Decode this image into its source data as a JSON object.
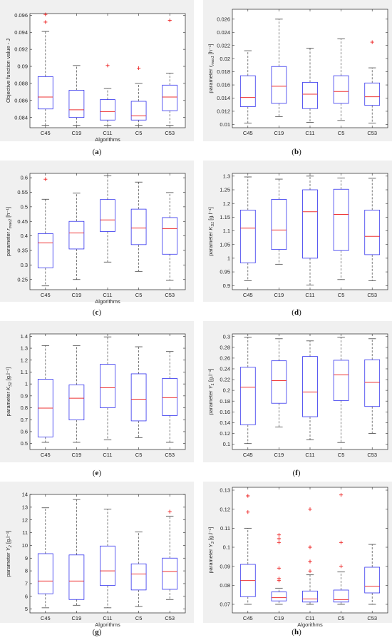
{
  "figure_colors": {
    "panel_background": "#f0f0f0",
    "box": "#3333ee",
    "median": "#ee3333",
    "outlier": "#ee2222",
    "whisker": "#444444"
  },
  "chart_data": [
    {
      "id": "a",
      "caption": "(a)",
      "type": "boxplot",
      "xlabel": "Algorithms",
      "ylabel": "Objective function value - J",
      "ylim": [
        0.0828,
        0.0962
      ],
      "yticks": [
        0.084,
        0.086,
        0.088,
        0.09,
        0.092,
        0.094,
        0.096
      ],
      "ytick_labels": [
        "0.084",
        "0.086",
        "0.088",
        "0.09",
        "0.092",
        "0.094",
        "0.096"
      ],
      "categories": [
        "C45",
        "C19",
        "C11",
        "C5",
        "C53"
      ],
      "boxes": [
        {
          "min": 0.0831,
          "q1": 0.085,
          "median": 0.0864,
          "q3": 0.0888,
          "max": 0.0941,
          "outliers": [
            0.0952,
            0.0961
          ]
        },
        {
          "min": 0.0831,
          "q1": 0.084,
          "median": 0.0849,
          "q3": 0.0872,
          "max": 0.0901,
          "outliers": []
        },
        {
          "min": 0.0831,
          "q1": 0.0837,
          "median": 0.0847,
          "q3": 0.0861,
          "max": 0.0874,
          "outliers": [
            0.0901
          ]
        },
        {
          "min": 0.0831,
          "q1": 0.0837,
          "median": 0.0842,
          "q3": 0.0859,
          "max": 0.088,
          "outliers": [
            0.0898
          ]
        },
        {
          "min": 0.0831,
          "q1": 0.0848,
          "median": 0.0864,
          "q3": 0.0878,
          "max": 0.0892,
          "outliers": [
            0.0954
          ]
        }
      ]
    },
    {
      "id": "b",
      "caption": "(b)",
      "type": "boxplot",
      "xlabel": "",
      "ylabel": "parameter r_max1 [h⁻¹]",
      "ylim": [
        0.0095,
        0.0275
      ],
      "yticks": [
        0.01,
        0.012,
        0.014,
        0.016,
        0.018,
        0.02,
        0.022,
        0.024,
        0.026
      ],
      "ytick_labels": [
        "0.01",
        "0.012",
        "0.014",
        "0.016",
        "0.018",
        "0.02",
        "0.022",
        "0.024",
        "0.026"
      ],
      "categories": [
        "C45",
        "C19",
        "C11",
        "C5",
        "C53"
      ],
      "boxes": [
        {
          "min": 0.0102,
          "q1": 0.0127,
          "median": 0.0141,
          "q3": 0.0174,
          "max": 0.0212,
          "outliers": []
        },
        {
          "min": 0.0112,
          "q1": 0.0132,
          "median": 0.0158,
          "q3": 0.0188,
          "max": 0.026,
          "outliers": []
        },
        {
          "min": 0.0103,
          "q1": 0.0124,
          "median": 0.0146,
          "q3": 0.0164,
          "max": 0.0216,
          "outliers": []
        },
        {
          "min": 0.0106,
          "q1": 0.0132,
          "median": 0.015,
          "q3": 0.0174,
          "max": 0.023,
          "outliers": []
        },
        {
          "min": 0.0102,
          "q1": 0.0129,
          "median": 0.0142,
          "q3": 0.0163,
          "max": 0.0186,
          "outliers": [
            0.0225
          ]
        }
      ]
    },
    {
      "id": "c",
      "caption": "(c)",
      "type": "boxplot",
      "xlabel": "Algorithms",
      "ylabel": "parameter r_max2 [h⁻¹]",
      "ylim": [
        0.215,
        0.615
      ],
      "yticks": [
        0.25,
        0.3,
        0.35,
        0.4,
        0.45,
        0.5,
        0.55,
        0.6
      ],
      "ytick_labels": [
        "0.25",
        "0.3",
        "0.35",
        "0.4",
        "0.45",
        "0.5",
        "0.55",
        "0.6"
      ],
      "categories": [
        "C45",
        "C19",
        "C11",
        "C5",
        "C53"
      ],
      "boxes": [
        {
          "min": 0.228,
          "q1": 0.29,
          "median": 0.376,
          "q3": 0.408,
          "max": 0.526,
          "outliers": [
            0.595
          ]
        },
        {
          "min": 0.25,
          "q1": 0.355,
          "median": 0.41,
          "q3": 0.45,
          "max": 0.547,
          "outliers": []
        },
        {
          "min": 0.31,
          "q1": 0.415,
          "median": 0.455,
          "q3": 0.525,
          "max": 0.607,
          "outliers": []
        },
        {
          "min": 0.278,
          "q1": 0.37,
          "median": 0.427,
          "q3": 0.492,
          "max": 0.585,
          "outliers": []
        },
        {
          "min": 0.247,
          "q1": 0.337,
          "median": 0.425,
          "q3": 0.463,
          "max": 0.549,
          "outliers": []
        }
      ]
    },
    {
      "id": "d",
      "caption": "(d)",
      "type": "boxplot",
      "xlabel": "",
      "ylabel": "parameter K_S1 [g.l⁻¹]",
      "ylim": [
        0.885,
        1.31
      ],
      "yticks": [
        0.9,
        0.95,
        1.0,
        1.05,
        1.1,
        1.15,
        1.2,
        1.25,
        1.3
      ],
      "ytick_labels": [
        "0.9",
        "0.95",
        "1",
        "1.05",
        "1.1",
        "1.15",
        "1.2",
        "1.25",
        "1.3"
      ],
      "categories": [
        "C45",
        "C19",
        "C11",
        "C5",
        "C53"
      ],
      "boxes": [
        {
          "min": 0.918,
          "q1": 0.983,
          "median": 1.11,
          "q3": 1.176,
          "max": 1.297,
          "outliers": []
        },
        {
          "min": 0.978,
          "q1": 1.032,
          "median": 1.103,
          "q3": 1.215,
          "max": 1.289,
          "outliers": []
        },
        {
          "min": 0.902,
          "q1": 1.0,
          "median": 1.17,
          "q3": 1.25,
          "max": 1.3,
          "outliers": []
        },
        {
          "min": 0.922,
          "q1": 1.028,
          "median": 1.16,
          "q3": 1.252,
          "max": 1.293,
          "outliers": []
        },
        {
          "min": 0.918,
          "q1": 1.013,
          "median": 1.08,
          "q3": 1.176,
          "max": 1.292,
          "outliers": []
        }
      ]
    },
    {
      "id": "e",
      "caption": "(e)",
      "type": "boxplot",
      "xlabel": "",
      "ylabel": "parameter K_S2 [g.l⁻¹]",
      "ylim": [
        0.45,
        1.42
      ],
      "yticks": [
        0.5,
        0.6,
        0.7,
        0.8,
        0.9,
        1.0,
        1.1,
        1.2,
        1.3,
        1.4
      ],
      "ytick_labels": [
        "0.5",
        "0.6",
        "0.7",
        "0.8",
        "0.9",
        "1",
        "1.1",
        "1.2",
        "1.3",
        "1.4"
      ],
      "categories": [
        "C45",
        "C19",
        "C11",
        "C5",
        "C53"
      ],
      "boxes": [
        {
          "min": 0.51,
          "q1": 0.555,
          "median": 0.797,
          "q3": 1.04,
          "max": 1.322,
          "outliers": []
        },
        {
          "min": 0.51,
          "q1": 0.698,
          "median": 0.88,
          "q3": 0.993,
          "max": 1.322,
          "outliers": []
        },
        {
          "min": 0.53,
          "q1": 0.8,
          "median": 0.968,
          "q3": 1.165,
          "max": 1.395,
          "outliers": []
        },
        {
          "min": 0.55,
          "q1": 0.69,
          "median": 0.872,
          "q3": 1.085,
          "max": 1.312,
          "outliers": []
        },
        {
          "min": 0.51,
          "q1": 0.735,
          "median": 0.885,
          "q3": 1.046,
          "max": 1.272,
          "outliers": []
        }
      ]
    },
    {
      "id": "f",
      "caption": "(f)",
      "type": "boxplot",
      "xlabel": "",
      "ylabel": "parameter Y_1 [g.l⁻¹]",
      "ylim": [
        0.09,
        0.305
      ],
      "yticks": [
        0.1,
        0.12,
        0.14,
        0.16,
        0.18,
        0.2,
        0.22,
        0.24,
        0.26,
        0.28,
        0.3
      ],
      "ytick_labels": [
        "0.1",
        "0.12",
        "0.14",
        "0.16",
        "0.18",
        "0.2",
        "0.22",
        "0.24",
        "0.26",
        "0.28",
        "0.3"
      ],
      "categories": [
        "C45",
        "C19",
        "C11",
        "C5",
        "C53"
      ],
      "boxes": [
        {
          "min": 0.101,
          "q1": 0.136,
          "median": 0.206,
          "q3": 0.243,
          "max": 0.299,
          "outliers": []
        },
        {
          "min": 0.132,
          "q1": 0.176,
          "median": 0.218,
          "q3": 0.255,
          "max": 0.296,
          "outliers": []
        },
        {
          "min": 0.108,
          "q1": 0.151,
          "median": 0.197,
          "q3": 0.263,
          "max": 0.292,
          "outliers": []
        },
        {
          "min": 0.103,
          "q1": 0.181,
          "median": 0.229,
          "q3": 0.256,
          "max": 0.299,
          "outliers": []
        },
        {
          "min": 0.12,
          "q1": 0.17,
          "median": 0.215,
          "q3": 0.257,
          "max": 0.296,
          "outliers": []
        }
      ]
    },
    {
      "id": "g",
      "caption": "(g)",
      "type": "boxplot",
      "xlabel": "Algorithms",
      "ylabel": "parameter Y_2 [g.l⁻¹]",
      "ylim": [
        4.7,
        14.0
      ],
      "yticks": [
        5,
        6,
        7,
        8,
        9,
        10,
        11,
        12,
        13,
        14
      ],
      "ytick_labels": [
        "5",
        "6",
        "7",
        "8",
        "9",
        "10",
        "11",
        "12",
        "13",
        "14"
      ],
      "categories": [
        "C45",
        "C19",
        "C11",
        "C5",
        "C53"
      ],
      "boxes": [
        {
          "min": 5.1,
          "q1": 6.2,
          "median": 7.2,
          "q3": 9.35,
          "max": 12.95,
          "outliers": []
        },
        {
          "min": 5.3,
          "q1": 5.75,
          "median": 7.2,
          "q3": 9.25,
          "max": 13.6,
          "outliers": []
        },
        {
          "min": 5.1,
          "q1": 6.85,
          "median": 8.0,
          "q3": 9.95,
          "max": 12.85,
          "outliers": []
        },
        {
          "min": 5.2,
          "q1": 6.5,
          "median": 7.75,
          "q3": 8.55,
          "max": 11.05,
          "outliers": []
        },
        {
          "min": 5.75,
          "q1": 6.55,
          "median": 7.95,
          "q3": 9.0,
          "max": 12.3,
          "outliers": [
            12.65
          ]
        }
      ]
    },
    {
      "id": "h",
      "caption": "(h)",
      "type": "boxplot",
      "xlabel": "Algorithms",
      "ylabel": "parameter Y_3 [g.l⁻¹]",
      "ylim": [
        0.0655,
        0.1315
      ],
      "yticks": [
        0.07,
        0.08,
        0.09,
        0.1,
        0.11,
        0.12,
        0.13
      ],
      "ytick_labels": [
        "0.07",
        "0.08",
        "0.09",
        "0.1",
        "0.11",
        "0.12",
        "0.13"
      ],
      "categories": [
        "C45",
        "C19",
        "C11",
        "C5",
        "C53"
      ],
      "boxes": [
        {
          "min": 0.07,
          "q1": 0.074,
          "median": 0.0825,
          "q3": 0.091,
          "max": 0.11,
          "outliers": [
            0.1185,
            0.127
          ]
        },
        {
          "min": 0.07,
          "q1": 0.0718,
          "median": 0.0735,
          "q3": 0.0765,
          "max": 0.0785,
          "outliers": [
            0.0825,
            0.0835,
            0.089,
            0.1025,
            0.1045,
            0.1065
          ]
        },
        {
          "min": 0.07,
          "q1": 0.0712,
          "median": 0.0728,
          "q3": 0.077,
          "max": 0.0855,
          "outliers": [
            0.0875,
            0.0925,
            0.1,
            0.12
          ]
        },
        {
          "min": 0.07,
          "q1": 0.0712,
          "median": 0.0725,
          "q3": 0.0775,
          "max": 0.087,
          "outliers": [
            0.09,
            0.1025,
            0.1275
          ]
        },
        {
          "min": 0.07,
          "q1": 0.076,
          "median": 0.0795,
          "q3": 0.0895,
          "max": 0.1015,
          "outliers": []
        }
      ]
    }
  ]
}
